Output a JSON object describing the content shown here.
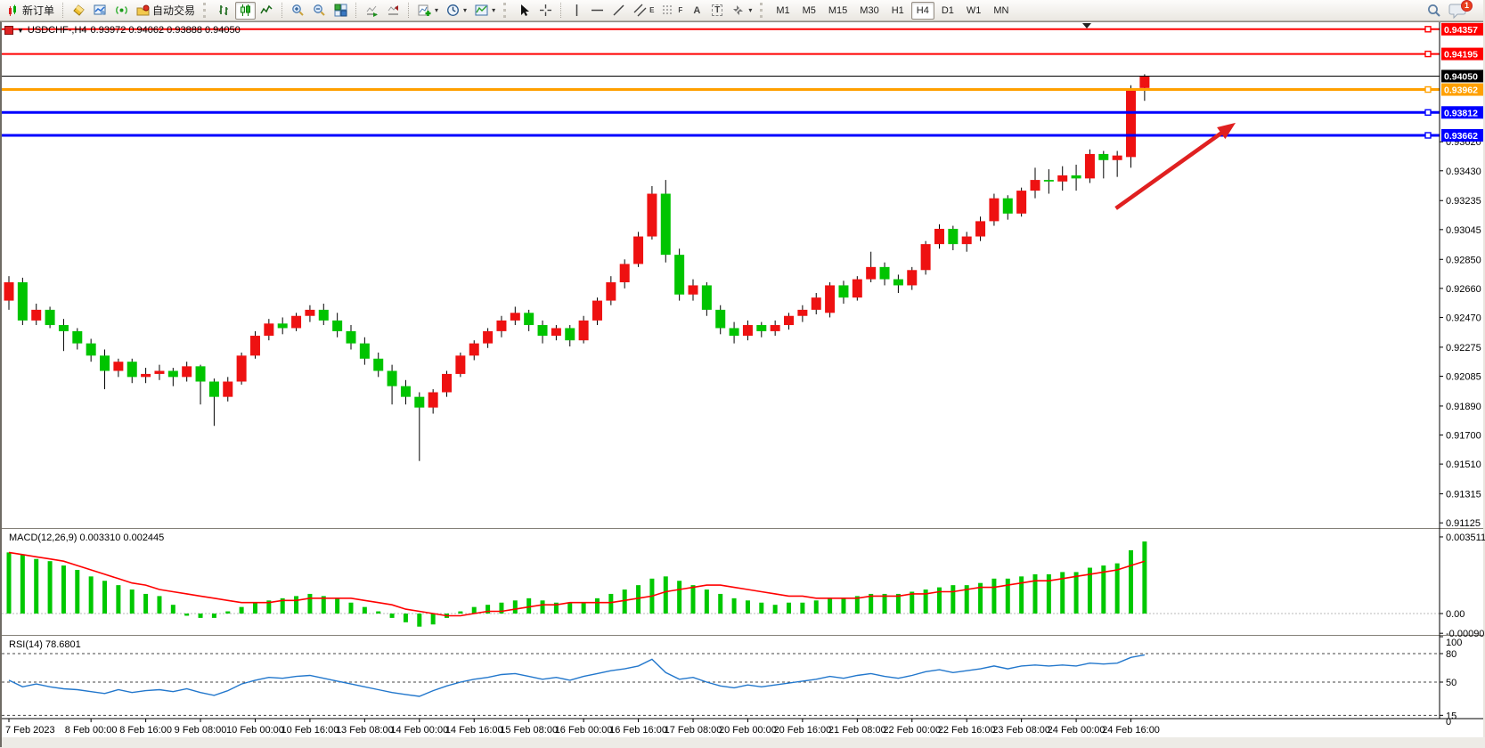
{
  "toolbar": {
    "new_order_label": "新订单",
    "auto_trading_label": "自动交易",
    "timeframes": [
      "M1",
      "M5",
      "M15",
      "M30",
      "H1",
      "H4",
      "D1",
      "W1",
      "MN"
    ],
    "active_timeframe": "H4",
    "tool_letters": {
      "a": "A",
      "t": "T",
      "e": "E",
      "f": "F"
    },
    "notification_count": "1"
  },
  "chart": {
    "symbol_period": "USDCHF-,H4",
    "ohlc": "0.93972 0.94062 0.93888 0.94050",
    "macd_label": "MACD(12,26,9) 0.003310 0.002445",
    "rsi_label": "RSI(14) 78.6801"
  },
  "chart_data": {
    "type": "candlestick+indicators",
    "symbol": "USDCHF",
    "period": "H4",
    "current_bar": {
      "open": 0.93972,
      "high": 0.94062,
      "low": 0.93888,
      "close": 0.9405
    },
    "colors": {
      "bull": "#ee1111",
      "bear": "#00c400",
      "wick": "#000000",
      "macd_hist": "#00c800",
      "macd_signal": "#ff0000",
      "rsi_line": "#2277cc",
      "line_red": "#ff0000",
      "line_orange": "#ffa000",
      "line_blue": "#0000ff",
      "arrow": "#e02020"
    },
    "price_lines": [
      {
        "label": "0.94357",
        "value": 0.94357,
        "color": "#ff0000",
        "w": 2
      },
      {
        "label": "0.94195",
        "value": 0.94195,
        "color": "#ff0000",
        "w": 2
      },
      {
        "label": "0.93962",
        "value": 0.93962,
        "color": "#ffa000",
        "w": 3
      },
      {
        "label": "0.93812",
        "value": 0.93812,
        "color": "#0000ff",
        "w": 3
      },
      {
        "label": "0.93662",
        "value": 0.93662,
        "color": "#0000ff",
        "w": 3
      }
    ],
    "current_price_line": {
      "label": "0.94050",
      "value": 0.9405,
      "color": "#000000"
    },
    "price_axis_ticks": [
      0.9362,
      0.9343,
      0.93235,
      0.93045,
      0.9285,
      0.9266,
      0.9247,
      0.92275,
      0.92085,
      0.9189,
      0.917,
      0.9151,
      0.91315,
      0.91125
    ],
    "macd_axis_ticks": [
      {
        "label": "0.003511",
        "v": 0.003511
      },
      {
        "label": "0.00",
        "v": 0
      },
      {
        "label": "-0.000905",
        "v": -0.000905
      }
    ],
    "rsi_axis_ticks": [
      {
        "label": "100",
        "v": 100,
        "dashed": false
      },
      {
        "label": "80",
        "v": 80,
        "dashed": true
      },
      {
        "label": "50",
        "v": 50,
        "dashed": true
      },
      {
        "label": "15",
        "v": 15,
        "dashed": true
      },
      {
        "label": "0",
        "v": 0,
        "dashed": false
      }
    ],
    "time_labels": [
      {
        "t": "7 Feb 2023",
        "i": 0
      },
      {
        "t": "8 Feb 00:00",
        "i": 6
      },
      {
        "t": "8 Feb 16:00",
        "i": 10
      },
      {
        "t": "9 Feb 08:00",
        "i": 14
      },
      {
        "t": "10 Feb 00:00",
        "i": 18
      },
      {
        "t": "10 Feb 16:00",
        "i": 22
      },
      {
        "t": "13 Feb 08:00",
        "i": 26
      },
      {
        "t": "14 Feb 00:00",
        "i": 30
      },
      {
        "t": "14 Feb 16:00",
        "i": 34
      },
      {
        "t": "15 Feb 08:00",
        "i": 38
      },
      {
        "t": "16 Feb 00:00",
        "i": 42
      },
      {
        "t": "16 Feb 16:00",
        "i": 46
      },
      {
        "t": "17 Feb 08:00",
        "i": 50
      },
      {
        "t": "20 Feb 00:00",
        "i": 54
      },
      {
        "t": "20 Feb 16:00",
        "i": 58
      },
      {
        "t": "21 Feb 08:00",
        "i": 62
      },
      {
        "t": "22 Feb 00:00",
        "i": 66
      },
      {
        "t": "22 Feb 16:00",
        "i": 70
      },
      {
        "t": "23 Feb 08:00",
        "i": 74
      },
      {
        "t": "24 Feb 00:00",
        "i": 78
      },
      {
        "t": "24 Feb 16:00",
        "i": 82
      }
    ],
    "candles": [
      [
        0.9258,
        0.9274,
        0.9252,
        0.927
      ],
      [
        0.927,
        0.9273,
        0.9242,
        0.9245
      ],
      [
        0.9245,
        0.9256,
        0.9242,
        0.9252
      ],
      [
        0.9252,
        0.9254,
        0.924,
        0.9242
      ],
      [
        0.9242,
        0.9246,
        0.9225,
        0.9238
      ],
      [
        0.9238,
        0.924,
        0.9226,
        0.923
      ],
      [
        0.923,
        0.9233,
        0.9218,
        0.9222
      ],
      [
        0.9222,
        0.9226,
        0.92,
        0.9212
      ],
      [
        0.9212,
        0.922,
        0.9208,
        0.9218
      ],
      [
        0.9218,
        0.922,
        0.9204,
        0.9208
      ],
      [
        0.9208,
        0.9214,
        0.9204,
        0.921
      ],
      [
        0.921,
        0.9216,
        0.9206,
        0.9212
      ],
      [
        0.9212,
        0.9214,
        0.9202,
        0.9208
      ],
      [
        0.9208,
        0.9218,
        0.9205,
        0.9215
      ],
      [
        0.9215,
        0.9216,
        0.919,
        0.9205
      ],
      [
        0.9205,
        0.9207,
        0.9176,
        0.9195
      ],
      [
        0.9195,
        0.9208,
        0.9192,
        0.9205
      ],
      [
        0.9205,
        0.9224,
        0.9203,
        0.9222
      ],
      [
        0.9222,
        0.9238,
        0.922,
        0.9235
      ],
      [
        0.9235,
        0.9246,
        0.9232,
        0.9243
      ],
      [
        0.9243,
        0.9247,
        0.9236,
        0.924
      ],
      [
        0.924,
        0.925,
        0.9238,
        0.9248
      ],
      [
        0.9248,
        0.9255,
        0.9244,
        0.9252
      ],
      [
        0.9252,
        0.9256,
        0.9242,
        0.9245
      ],
      [
        0.9245,
        0.925,
        0.9234,
        0.9238
      ],
      [
        0.9238,
        0.9242,
        0.9226,
        0.923
      ],
      [
        0.923,
        0.9234,
        0.9216,
        0.922
      ],
      [
        0.922,
        0.9224,
        0.9208,
        0.9212
      ],
      [
        0.9212,
        0.9216,
        0.919,
        0.9202
      ],
      [
        0.9202,
        0.9206,
        0.919,
        0.9195
      ],
      [
        0.9195,
        0.9198,
        0.9153,
        0.9188
      ],
      [
        0.9188,
        0.92,
        0.9184,
        0.9198
      ],
      [
        0.9198,
        0.9212,
        0.9195,
        0.921
      ],
      [
        0.921,
        0.9224,
        0.9208,
        0.9222
      ],
      [
        0.9222,
        0.9232,
        0.9219,
        0.923
      ],
      [
        0.923,
        0.924,
        0.9227,
        0.9238
      ],
      [
        0.9238,
        0.9248,
        0.9234,
        0.9245
      ],
      [
        0.9245,
        0.9254,
        0.9242,
        0.925
      ],
      [
        0.925,
        0.9252,
        0.9238,
        0.9242
      ],
      [
        0.9242,
        0.9245,
        0.923,
        0.9235
      ],
      [
        0.9235,
        0.9242,
        0.9232,
        0.924
      ],
      [
        0.924,
        0.9242,
        0.9228,
        0.9232
      ],
      [
        0.9232,
        0.9248,
        0.923,
        0.9245
      ],
      [
        0.9245,
        0.926,
        0.9242,
        0.9258
      ],
      [
        0.9258,
        0.9274,
        0.9255,
        0.927
      ],
      [
        0.927,
        0.9285,
        0.9266,
        0.9282
      ],
      [
        0.9282,
        0.9303,
        0.928,
        0.93
      ],
      [
        0.93,
        0.9333,
        0.9298,
        0.9328
      ],
      [
        0.9328,
        0.9337,
        0.9283,
        0.9288
      ],
      [
        0.9288,
        0.9292,
        0.9258,
        0.9262
      ],
      [
        0.9262,
        0.9272,
        0.9258,
        0.9268
      ],
      [
        0.9268,
        0.927,
        0.9248,
        0.9252
      ],
      [
        0.9252,
        0.9255,
        0.9236,
        0.924
      ],
      [
        0.924,
        0.9244,
        0.923,
        0.9235
      ],
      [
        0.9235,
        0.9245,
        0.9232,
        0.9242
      ],
      [
        0.9242,
        0.9244,
        0.9234,
        0.9238
      ],
      [
        0.9238,
        0.9245,
        0.9235,
        0.9242
      ],
      [
        0.9242,
        0.925,
        0.9239,
        0.9248
      ],
      [
        0.9248,
        0.9255,
        0.9244,
        0.9252
      ],
      [
        0.9252,
        0.9263,
        0.9249,
        0.926
      ],
      [
        0.925,
        0.927,
        0.9247,
        0.9268
      ],
      [
        0.9268,
        0.9271,
        0.9256,
        0.926
      ],
      [
        0.926,
        0.9274,
        0.9258,
        0.9272
      ],
      [
        0.9272,
        0.929,
        0.927,
        0.928
      ],
      [
        0.928,
        0.9283,
        0.9268,
        0.9272
      ],
      [
        0.9272,
        0.9275,
        0.9263,
        0.9268
      ],
      [
        0.9268,
        0.928,
        0.9265,
        0.9278
      ],
      [
        0.9278,
        0.9297,
        0.9275,
        0.9295
      ],
      [
        0.9295,
        0.9308,
        0.9292,
        0.9305
      ],
      [
        0.9305,
        0.9307,
        0.9291,
        0.9295
      ],
      [
        0.9295,
        0.9303,
        0.929,
        0.93
      ],
      [
        0.93,
        0.9313,
        0.9297,
        0.931
      ],
      [
        0.931,
        0.9328,
        0.9307,
        0.9325
      ],
      [
        0.9325,
        0.9327,
        0.9311,
        0.9315
      ],
      [
        0.9315,
        0.9332,
        0.9313,
        0.933
      ],
      [
        0.933,
        0.9345,
        0.9325,
        0.9337
      ],
      [
        0.9337,
        0.9344,
        0.9328,
        0.9336
      ],
      [
        0.9336,
        0.9346,
        0.933,
        0.934
      ],
      [
        0.934,
        0.9347,
        0.933,
        0.9338
      ],
      [
        0.9338,
        0.9357,
        0.9335,
        0.9354
      ],
      [
        0.9354,
        0.9356,
        0.9338,
        0.935
      ],
      [
        0.935,
        0.9356,
        0.9339,
        0.9353
      ],
      [
        0.9352,
        0.9399,
        0.9345,
        0.9397
      ],
      [
        0.93972,
        0.94062,
        0.93888,
        0.9405
      ]
    ],
    "macd": {
      "histogram": [
        0.0028,
        0.0027,
        0.0025,
        0.0024,
        0.0022,
        0.002,
        0.0017,
        0.0015,
        0.0013,
        0.0011,
        0.0009,
        0.0008,
        0.0004,
        -0.0001,
        -0.0002,
        -0.0002,
        0.0001,
        0.0003,
        0.0005,
        0.0006,
        0.0007,
        0.0008,
        0.0009,
        0.0008,
        0.0007,
        0.0005,
        0.0003,
        0.0001,
        -0.0002,
        -0.0004,
        -0.0006,
        -0.0005,
        -0.0002,
        0.0001,
        0.0003,
        0.0004,
        0.0005,
        0.0006,
        0.0007,
        0.0006,
        0.0005,
        0.0005,
        0.0005,
        0.0007,
        0.0009,
        0.0011,
        0.0013,
        0.0016,
        0.0017,
        0.0015,
        0.0013,
        0.0011,
        0.0009,
        0.0007,
        0.0006,
        0.0005,
        0.0004,
        0.0005,
        0.0005,
        0.0006,
        0.0007,
        0.0007,
        0.0008,
        0.0009,
        0.0009,
        0.0009,
        0.001,
        0.0011,
        0.0012,
        0.0013,
        0.0013,
        0.0014,
        0.0016,
        0.0016,
        0.0017,
        0.0018,
        0.0018,
        0.0019,
        0.0019,
        0.0021,
        0.0022,
        0.0023,
        0.0029,
        0.0033
      ],
      "signal": [
        0.0028,
        0.0027,
        0.0026,
        0.0025,
        0.0024,
        0.0022,
        0.002,
        0.0018,
        0.0016,
        0.0014,
        0.0013,
        0.0011,
        0.001,
        0.0009,
        0.0008,
        0.0007,
        0.0006,
        0.0005,
        0.0005,
        0.0005,
        0.0006,
        0.0006,
        0.0007,
        0.0007,
        0.0007,
        0.0007,
        0.0006,
        0.0005,
        0.0004,
        0.0002,
        0.0001,
        0.0,
        -0.0001,
        -0.0001,
        0.0,
        0.0001,
        0.0001,
        0.0002,
        0.0003,
        0.0004,
        0.0004,
        0.0005,
        0.0005,
        0.0005,
        0.0005,
        0.0006,
        0.0007,
        0.0008,
        0.001,
        0.0011,
        0.0012,
        0.0013,
        0.0013,
        0.0012,
        0.0011,
        0.001,
        0.0009,
        0.0008,
        0.0008,
        0.0007,
        0.0007,
        0.0007,
        0.0007,
        0.0008,
        0.0008,
        0.0008,
        0.0009,
        0.0009,
        0.001,
        0.001,
        0.0011,
        0.0012,
        0.0012,
        0.0013,
        0.0014,
        0.0015,
        0.0015,
        0.0016,
        0.0017,
        0.0018,
        0.0019,
        0.002,
        0.0022,
        0.0024
      ]
    },
    "rsi": [
      52,
      45,
      48,
      45,
      43,
      42,
      40,
      38,
      42,
      39,
      41,
      42,
      40,
      43,
      39,
      36,
      41,
      48,
      52,
      55,
      54,
      56,
      57,
      54,
      51,
      48,
      45,
      42,
      39,
      37,
      35,
      41,
      46,
      50,
      53,
      55,
      58,
      59,
      56,
      53,
      55,
      52,
      56,
      59,
      62,
      64,
      67,
      74,
      60,
      53,
      55,
      50,
      46,
      44,
      47,
      45,
      47,
      49,
      51,
      53,
      56,
      54,
      57,
      59,
      56,
      54,
      57,
      61,
      63,
      60,
      62,
      64,
      67,
      64,
      67,
      68,
      67,
      68,
      67,
      70,
      69,
      70,
      76,
      78.7
    ],
    "annotations": [
      {
        "type": "trend-arrow",
        "bar_from": 80.9,
        "price_from": 0.93184,
        "bar_to": 89.65,
        "price_to": 0.93744,
        "color": "#e02020"
      }
    ]
  }
}
